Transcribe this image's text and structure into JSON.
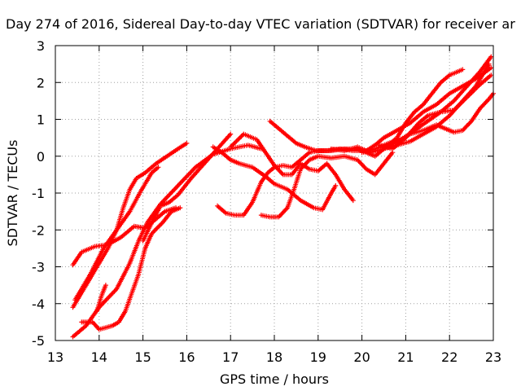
{
  "chart_data": {
    "type": "scatter",
    "title": "Day 274 of 2016, Sidereal Day-to-day VTEC variation (SDTVAR) for receiver ar",
    "xlabel": "GPS time / hours",
    "ylabel": "SDTVAR / TECUs",
    "xlim": [
      13,
      23
    ],
    "ylim": [
      -5,
      3
    ],
    "xticks": [
      "13",
      "14",
      "15",
      "16",
      "17",
      "18",
      "19",
      "20",
      "21",
      "22",
      "23"
    ],
    "yticks": [
      "3",
      "2",
      "1",
      "0",
      "-1",
      "-2",
      "-3",
      "-4",
      "-5"
    ],
    "grid": true,
    "marker": "plus",
    "color": "#ff0000",
    "series": [
      {
        "points": [
          [
            13.4,
            -4.9
          ],
          [
            13.7,
            -4.6
          ],
          [
            14.0,
            -4.1
          ],
          [
            14.4,
            -3.6
          ],
          [
            14.7,
            -2.9
          ],
          [
            14.9,
            -2.3
          ],
          [
            15.1,
            -1.8
          ],
          [
            15.4,
            -1.3
          ],
          [
            15.8,
            -0.8
          ],
          [
            16.2,
            -0.3
          ],
          [
            16.6,
            0.05
          ],
          [
            17.0,
            0.2
          ],
          [
            17.4,
            0.3
          ],
          [
            17.7,
            0.2
          ]
        ]
      },
      {
        "points": [
          [
            13.4,
            -4.1
          ],
          [
            13.7,
            -3.5
          ],
          [
            14.0,
            -2.9
          ],
          [
            14.2,
            -2.5
          ],
          [
            14.4,
            -2.0
          ],
          [
            14.55,
            -1.4
          ],
          [
            14.7,
            -0.9
          ],
          [
            14.85,
            -0.6
          ],
          [
            15.05,
            -0.45
          ],
          [
            15.3,
            -0.2
          ],
          [
            15.55,
            0.0
          ],
          [
            15.8,
            0.2
          ],
          [
            16.0,
            0.35
          ]
        ]
      },
      {
        "points": [
          [
            13.45,
            -3.9
          ],
          [
            13.8,
            -3.2
          ],
          [
            14.1,
            -2.5
          ],
          [
            14.4,
            -2.0
          ],
          [
            14.7,
            -1.5
          ],
          [
            14.95,
            -0.95
          ],
          [
            15.2,
            -0.45
          ],
          [
            15.35,
            -0.3
          ]
        ]
      },
      {
        "points": [
          [
            13.4,
            -2.95
          ],
          [
            13.6,
            -2.6
          ],
          [
            13.9,
            -2.45
          ],
          [
            14.2,
            -2.4
          ],
          [
            14.5,
            -2.2
          ],
          [
            14.8,
            -1.9
          ],
          [
            15.05,
            -1.95
          ],
          [
            15.3,
            -1.7
          ],
          [
            15.5,
            -1.5
          ],
          [
            15.75,
            -1.4
          ]
        ]
      },
      {
        "points": [
          [
            13.6,
            -4.5
          ],
          [
            13.85,
            -4.5
          ],
          [
            14.0,
            -4.7
          ],
          [
            14.3,
            -4.6
          ],
          [
            14.45,
            -4.5
          ],
          [
            14.6,
            -4.2
          ],
          [
            14.75,
            -3.7
          ],
          [
            14.9,
            -3.2
          ],
          [
            15.05,
            -2.5
          ],
          [
            15.2,
            -2.1
          ],
          [
            15.45,
            -1.8
          ],
          [
            15.65,
            -1.5
          ],
          [
            15.85,
            -1.4
          ]
        ]
      },
      {
        "points": [
          [
            13.95,
            -4.2
          ],
          [
            14.05,
            -3.8
          ],
          [
            14.15,
            -3.5
          ]
        ]
      },
      {
        "points": [
          [
            15.0,
            -2.3
          ],
          [
            15.2,
            -1.8
          ],
          [
            15.4,
            -1.35
          ],
          [
            15.6,
            -1.25
          ],
          [
            15.8,
            -1.05
          ],
          [
            16.1,
            -0.6
          ],
          [
            16.4,
            -0.2
          ],
          [
            16.7,
            0.2
          ],
          [
            17.0,
            0.6
          ]
        ]
      },
      {
        "points": [
          [
            16.7,
            -1.35
          ],
          [
            16.9,
            -1.55
          ],
          [
            17.1,
            -1.6
          ],
          [
            17.3,
            -1.6
          ],
          [
            17.5,
            -1.25
          ],
          [
            17.7,
            -0.7
          ],
          [
            17.85,
            -0.45
          ],
          [
            18.0,
            -0.3
          ],
          [
            18.2,
            -0.25
          ],
          [
            18.4,
            -0.3
          ],
          [
            18.6,
            -0.1
          ],
          [
            18.8,
            0.1
          ],
          [
            19.0,
            0.15
          ],
          [
            19.3,
            0.15
          ],
          [
            19.6,
            0.2
          ],
          [
            19.9,
            0.2
          ],
          [
            20.1,
            0.1
          ],
          [
            20.3,
            0.0
          ],
          [
            20.5,
            0.2
          ],
          [
            20.8,
            0.3
          ],
          [
            21.1,
            0.4
          ],
          [
            21.4,
            0.6
          ],
          [
            21.7,
            0.8
          ],
          [
            22.0,
            1.1
          ],
          [
            22.3,
            1.5
          ],
          [
            22.6,
            1.9
          ],
          [
            22.9,
            2.5
          ]
        ]
      },
      {
        "points": [
          [
            17.7,
            -1.6
          ],
          [
            17.9,
            -1.65
          ],
          [
            18.1,
            -1.65
          ],
          [
            18.3,
            -1.4
          ],
          [
            18.45,
            -0.9
          ],
          [
            18.6,
            -0.35
          ],
          [
            18.8,
            -0.1
          ],
          [
            19.0,
            0.0
          ],
          [
            19.3,
            -0.05
          ],
          [
            19.6,
            0.0
          ],
          [
            19.9,
            -0.1
          ],
          [
            20.1,
            -0.35
          ],
          [
            20.3,
            -0.5
          ],
          [
            20.5,
            -0.2
          ],
          [
            20.7,
            0.1
          ]
        ]
      },
      {
        "points": [
          [
            16.6,
            0.25
          ],
          [
            16.8,
            0.1
          ],
          [
            17.0,
            -0.1
          ],
          [
            17.2,
            -0.2
          ],
          [
            17.5,
            -0.3
          ],
          [
            17.8,
            -0.55
          ],
          [
            18.0,
            -0.75
          ],
          [
            18.3,
            -0.9
          ],
          [
            18.6,
            -1.2
          ],
          [
            18.9,
            -1.4
          ],
          [
            19.1,
            -1.45
          ],
          [
            19.3,
            -1.0
          ],
          [
            19.4,
            -0.8
          ]
        ]
      },
      {
        "points": [
          [
            17.0,
            0.25
          ],
          [
            17.3,
            0.6
          ],
          [
            17.6,
            0.45
          ],
          [
            17.8,
            0.1
          ],
          [
            18.0,
            -0.25
          ],
          [
            18.2,
            -0.5
          ],
          [
            18.4,
            -0.5
          ],
          [
            18.6,
            -0.2
          ],
          [
            18.8,
            -0.35
          ],
          [
            19.0,
            -0.4
          ],
          [
            19.2,
            -0.2
          ],
          [
            19.4,
            -0.5
          ],
          [
            19.6,
            -0.9
          ],
          [
            19.8,
            -1.2
          ]
        ]
      },
      {
        "points": [
          [
            17.9,
            0.95
          ],
          [
            18.1,
            0.75
          ],
          [
            18.3,
            0.55
          ],
          [
            18.5,
            0.35
          ],
          [
            18.7,
            0.25
          ],
          [
            18.95,
            0.15
          ],
          [
            19.2,
            0.15
          ],
          [
            19.5,
            0.2
          ],
          [
            19.8,
            0.15
          ],
          [
            20.1,
            0.15
          ],
          [
            20.3,
            0.3
          ],
          [
            20.5,
            0.5
          ],
          [
            20.8,
            0.7
          ],
          [
            21.1,
            0.9
          ],
          [
            21.4,
            1.2
          ],
          [
            21.7,
            1.4
          ],
          [
            22.0,
            1.7
          ],
          [
            22.3,
            1.9
          ],
          [
            22.6,
            2.1
          ],
          [
            22.95,
            2.4
          ]
        ]
      },
      {
        "points": [
          [
            19.3,
            0.2
          ],
          [
            19.6,
            0.15
          ],
          [
            19.9,
            0.25
          ],
          [
            20.2,
            0.1
          ],
          [
            20.5,
            0.2
          ],
          [
            20.8,
            0.5
          ],
          [
            21.0,
            0.9
          ],
          [
            21.2,
            1.2
          ],
          [
            21.4,
            1.4
          ],
          [
            21.6,
            1.7
          ],
          [
            21.8,
            2.0
          ],
          [
            22.0,
            2.2
          ],
          [
            22.3,
            2.35
          ]
        ]
      },
      {
        "points": [
          [
            20.0,
            0.1
          ],
          [
            20.3,
            0.2
          ],
          [
            20.6,
            0.35
          ],
          [
            20.9,
            0.45
          ],
          [
            21.2,
            0.7
          ],
          [
            21.5,
            0.95
          ],
          [
            21.8,
            1.2
          ],
          [
            22.1,
            1.5
          ],
          [
            22.4,
            1.9
          ],
          [
            22.7,
            2.3
          ],
          [
            22.95,
            2.7
          ]
        ]
      },
      {
        "points": [
          [
            20.4,
            0.3
          ],
          [
            20.7,
            0.2
          ],
          [
            21.0,
            0.5
          ],
          [
            21.3,
            0.9
          ],
          [
            21.5,
            1.1
          ],
          [
            21.8,
            1.2
          ],
          [
            22.1,
            1.25
          ],
          [
            22.4,
            1.6
          ],
          [
            22.7,
            1.95
          ],
          [
            22.95,
            2.2
          ]
        ]
      },
      {
        "points": [
          [
            20.5,
            0.2
          ],
          [
            20.8,
            0.4
          ],
          [
            21.1,
            0.6
          ],
          [
            21.4,
            0.7
          ],
          [
            21.7,
            0.85
          ],
          [
            21.9,
            0.75
          ],
          [
            22.1,
            0.65
          ],
          [
            22.3,
            0.7
          ],
          [
            22.5,
            0.95
          ],
          [
            22.7,
            1.3
          ],
          [
            22.9,
            1.55
          ],
          [
            23.0,
            1.7
          ]
        ]
      }
    ]
  }
}
